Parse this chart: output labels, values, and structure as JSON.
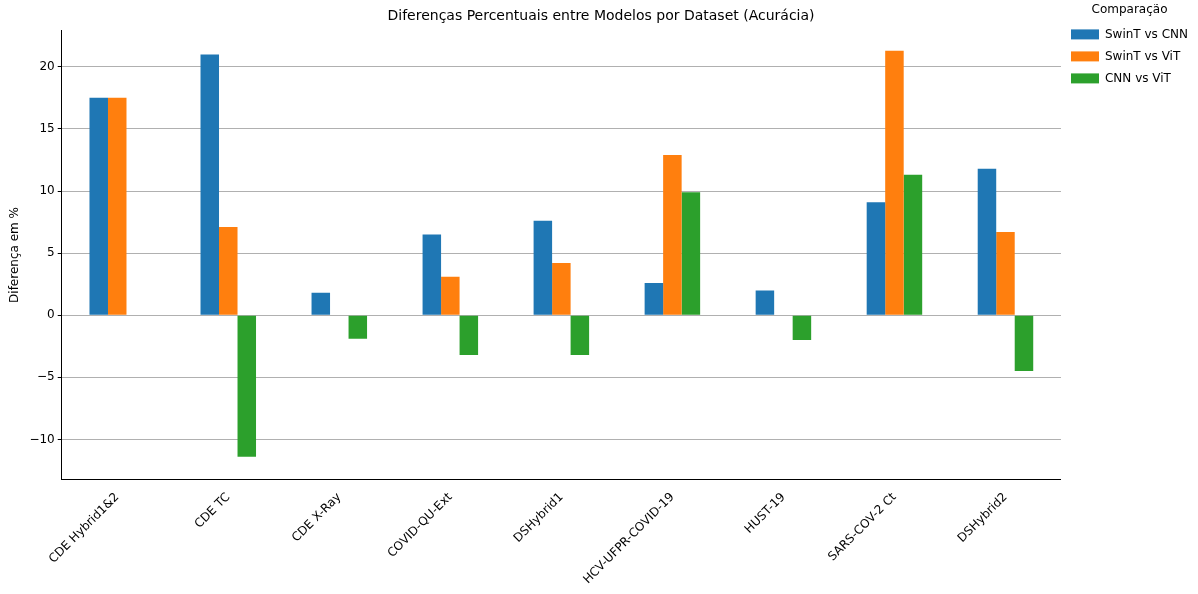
{
  "chart_data": {
    "type": "bar",
    "title": "Diferenças Percentuais entre Modelos por Dataset (Acurácia)",
    "ylabel": "Diferença em %",
    "legend_title": "Comparação",
    "categories": [
      "CDE Hybrid1&2",
      "CDE TC",
      "CDE X-Ray",
      "COVID-QU-Ext",
      "DSHybrid1",
      "HCV-UFPR-COVID-19",
      "HUST-19",
      "SARS-COV-2 Ct",
      "DSHybrid2"
    ],
    "series": [
      {
        "name": "SwinT vs CNN",
        "color": "#1f77b4",
        "values": [
          17.5,
          21.0,
          1.8,
          6.5,
          7.6,
          2.6,
          2.0,
          9.1,
          11.8
        ]
      },
      {
        "name": "SwinT vs ViT",
        "color": "#ff7f0e",
        "values": [
          17.5,
          7.1,
          null,
          3.1,
          4.2,
          12.9,
          null,
          21.3,
          6.7
        ]
      },
      {
        "name": "CNN vs ViT",
        "color": "#2ca02c",
        "values": [
          null,
          -11.4,
          -1.9,
          -3.2,
          -3.2,
          9.9,
          -2.0,
          11.3,
          -4.5
        ]
      }
    ],
    "ylim": [
      -13.2,
      22.9
    ],
    "yticks": [
      -10,
      -5,
      0,
      5,
      10,
      15,
      20
    ],
    "grid": "y",
    "legend": "top right"
  }
}
